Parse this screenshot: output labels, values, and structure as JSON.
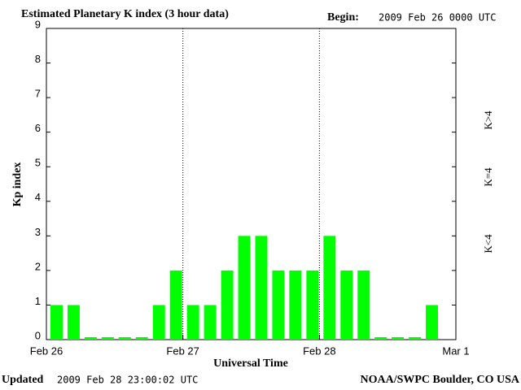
{
  "chart_data": {
    "type": "bar",
    "title": "Estimated Planetary K index (3 hour data)",
    "begin_label": "Begin:",
    "begin_value": "2009 Feb 26 0000 UTC",
    "y_label": "Kp index",
    "x_label": "Universal Time",
    "x": [
      0,
      3,
      6,
      9,
      12,
      15,
      18,
      21,
      24,
      27,
      30,
      33,
      36,
      39,
      42,
      45,
      48,
      51,
      54,
      57,
      60,
      63,
      66,
      69
    ],
    "values": [
      1,
      1,
      0,
      0,
      0,
      0,
      1,
      2,
      1,
      1,
      2,
      3,
      3,
      2,
      2,
      2,
      3,
      2,
      2,
      0,
      0,
      0,
      1,
      null
    ],
    "color": "#00ff00",
    "xlim": [
      0,
      72
    ],
    "xticks": [
      {
        "value": 0,
        "label": "Feb 26"
      },
      {
        "value": 24,
        "label": "Feb 27"
      },
      {
        "value": 48,
        "label": "Feb 28"
      },
      {
        "value": 72,
        "label": "Mar 1"
      }
    ],
    "ylim": [
      0,
      9
    ],
    "yticks": [
      0,
      1,
      2,
      3,
      4,
      5,
      6,
      7,
      8,
      9
    ],
    "x_grid": true,
    "legend": [
      {
        "name": "K<4",
        "color": "#00ff00"
      },
      {
        "name": "K=4",
        "color": "#ffcc00"
      },
      {
        "name": "K>4",
        "color": "#ff2000"
      }
    ],
    "footer_left_label": "Updated",
    "footer_left_value": "2009 Feb 28 23:00:02 UTC",
    "footer_right": "NOAA/SWPC Boulder, CO USA"
  }
}
